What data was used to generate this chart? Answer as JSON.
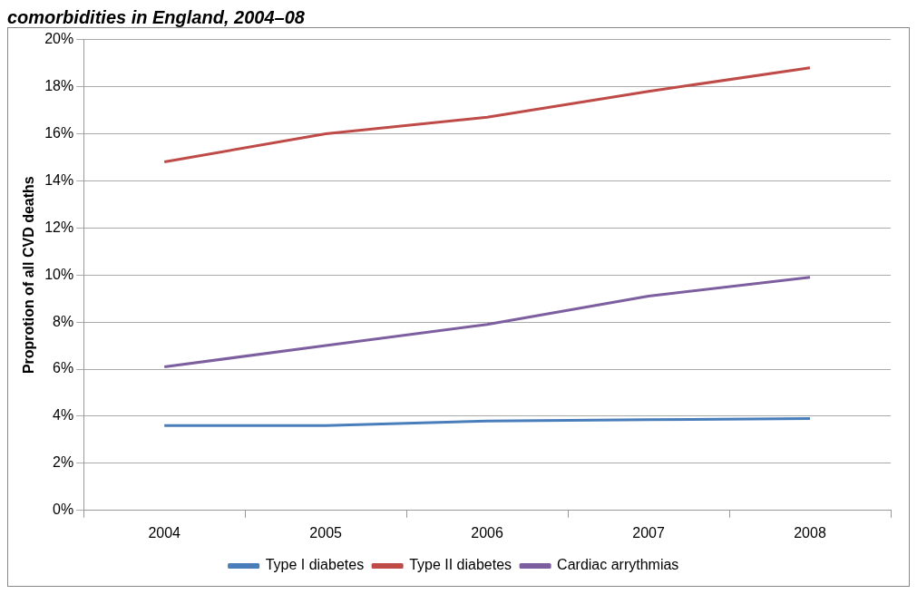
{
  "chart_data": {
    "type": "line",
    "title": "comorbidities in England, 2004–08",
    "ylabel": "Proprotion of all CVD deaths",
    "categories": [
      "2004",
      "2005",
      "2006",
      "2007",
      "2008"
    ],
    "series": [
      {
        "name": "Type I diabetes",
        "color": "#4a7ebb",
        "values": [
          3.6,
          3.6,
          3.8,
          3.85,
          3.9
        ]
      },
      {
        "name": "Type II diabetes",
        "color": "#be4b48",
        "values": [
          14.8,
          16.0,
          16.7,
          17.8,
          18.8
        ]
      },
      {
        "name": "Cardiac arrythmias",
        "color": "#7d5fa0",
        "values": [
          6.1,
          7.0,
          7.9,
          9.1,
          9.9
        ]
      }
    ],
    "ylim": [
      0,
      20
    ],
    "yticks": [
      {
        "value": 0,
        "label": "0%"
      },
      {
        "value": 2,
        "label": "2%"
      },
      {
        "value": 4,
        "label": "4%"
      },
      {
        "value": 6,
        "label": "6%"
      },
      {
        "value": 8,
        "label": "8%"
      },
      {
        "value": 10,
        "label": "10%"
      },
      {
        "value": 12,
        "label": "12%"
      },
      {
        "value": 14,
        "label": "14%"
      },
      {
        "value": 16,
        "label": "16%"
      },
      {
        "value": 18,
        "label": "18%"
      },
      {
        "value": 20,
        "label": "20%"
      }
    ],
    "grid": "y",
    "legend": "bottom",
    "marker": "none",
    "line_style": "solid"
  }
}
